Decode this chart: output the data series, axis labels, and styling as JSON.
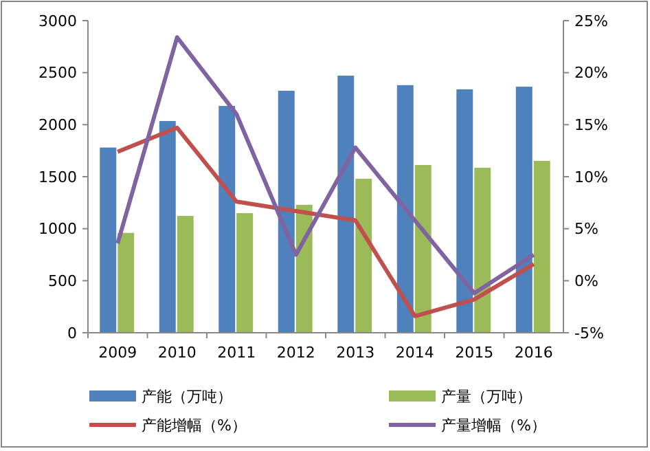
{
  "chart_data": {
    "type": "bar",
    "categories": [
      "2009",
      "2010",
      "2011",
      "2012",
      "2013",
      "2014",
      "2015",
      "2016"
    ],
    "series": [
      {
        "name": "产能（万吨）",
        "color": "#4f81bd",
        "values": [
          1780,
          2035,
          2180,
          2326,
          2471,
          2380,
          2340,
          2365
        ]
      },
      {
        "name": "产量（万吨）",
        "color": "#9bbb59",
        "values": [
          960,
          1123,
          1150,
          1230,
          1480,
          1612,
          1586,
          1652
        ]
      },
      {
        "name": "产能增幅（%）",
        "type": "line",
        "axis": "y2",
        "color": "#c0504d",
        "values": [
          12.4,
          14.7,
          7.6,
          6.7,
          5.8,
          -3.4,
          -1.8,
          1.6
        ]
      },
      {
        "name": "产量增幅（%）",
        "type": "line",
        "axis": "y2",
        "color": "#8064a2",
        "values": [
          3.6,
          23.4,
          16,
          2.5,
          12.8,
          5.8,
          -1.2,
          2.5
        ]
      }
    ],
    "ylim": [
      0,
      3000
    ],
    "yticks": [
      0,
      500,
      1000,
      1500,
      2000,
      2500,
      3000
    ],
    "y2lim": [
      -5,
      25
    ],
    "y2ticks": [
      {
        "value": -5,
        "label": "-5%"
      },
      {
        "value": 0,
        "label": "0%"
      },
      {
        "value": 5,
        "label": "5%"
      },
      {
        "value": 10,
        "label": "10%"
      },
      {
        "value": 15,
        "label": "15%"
      },
      {
        "value": 20,
        "label": "20%"
      },
      {
        "value": 25,
        "label": "25%"
      }
    ],
    "legend": "bottom",
    "grid": false,
    "marker": "none",
    "line_style": "solid"
  }
}
